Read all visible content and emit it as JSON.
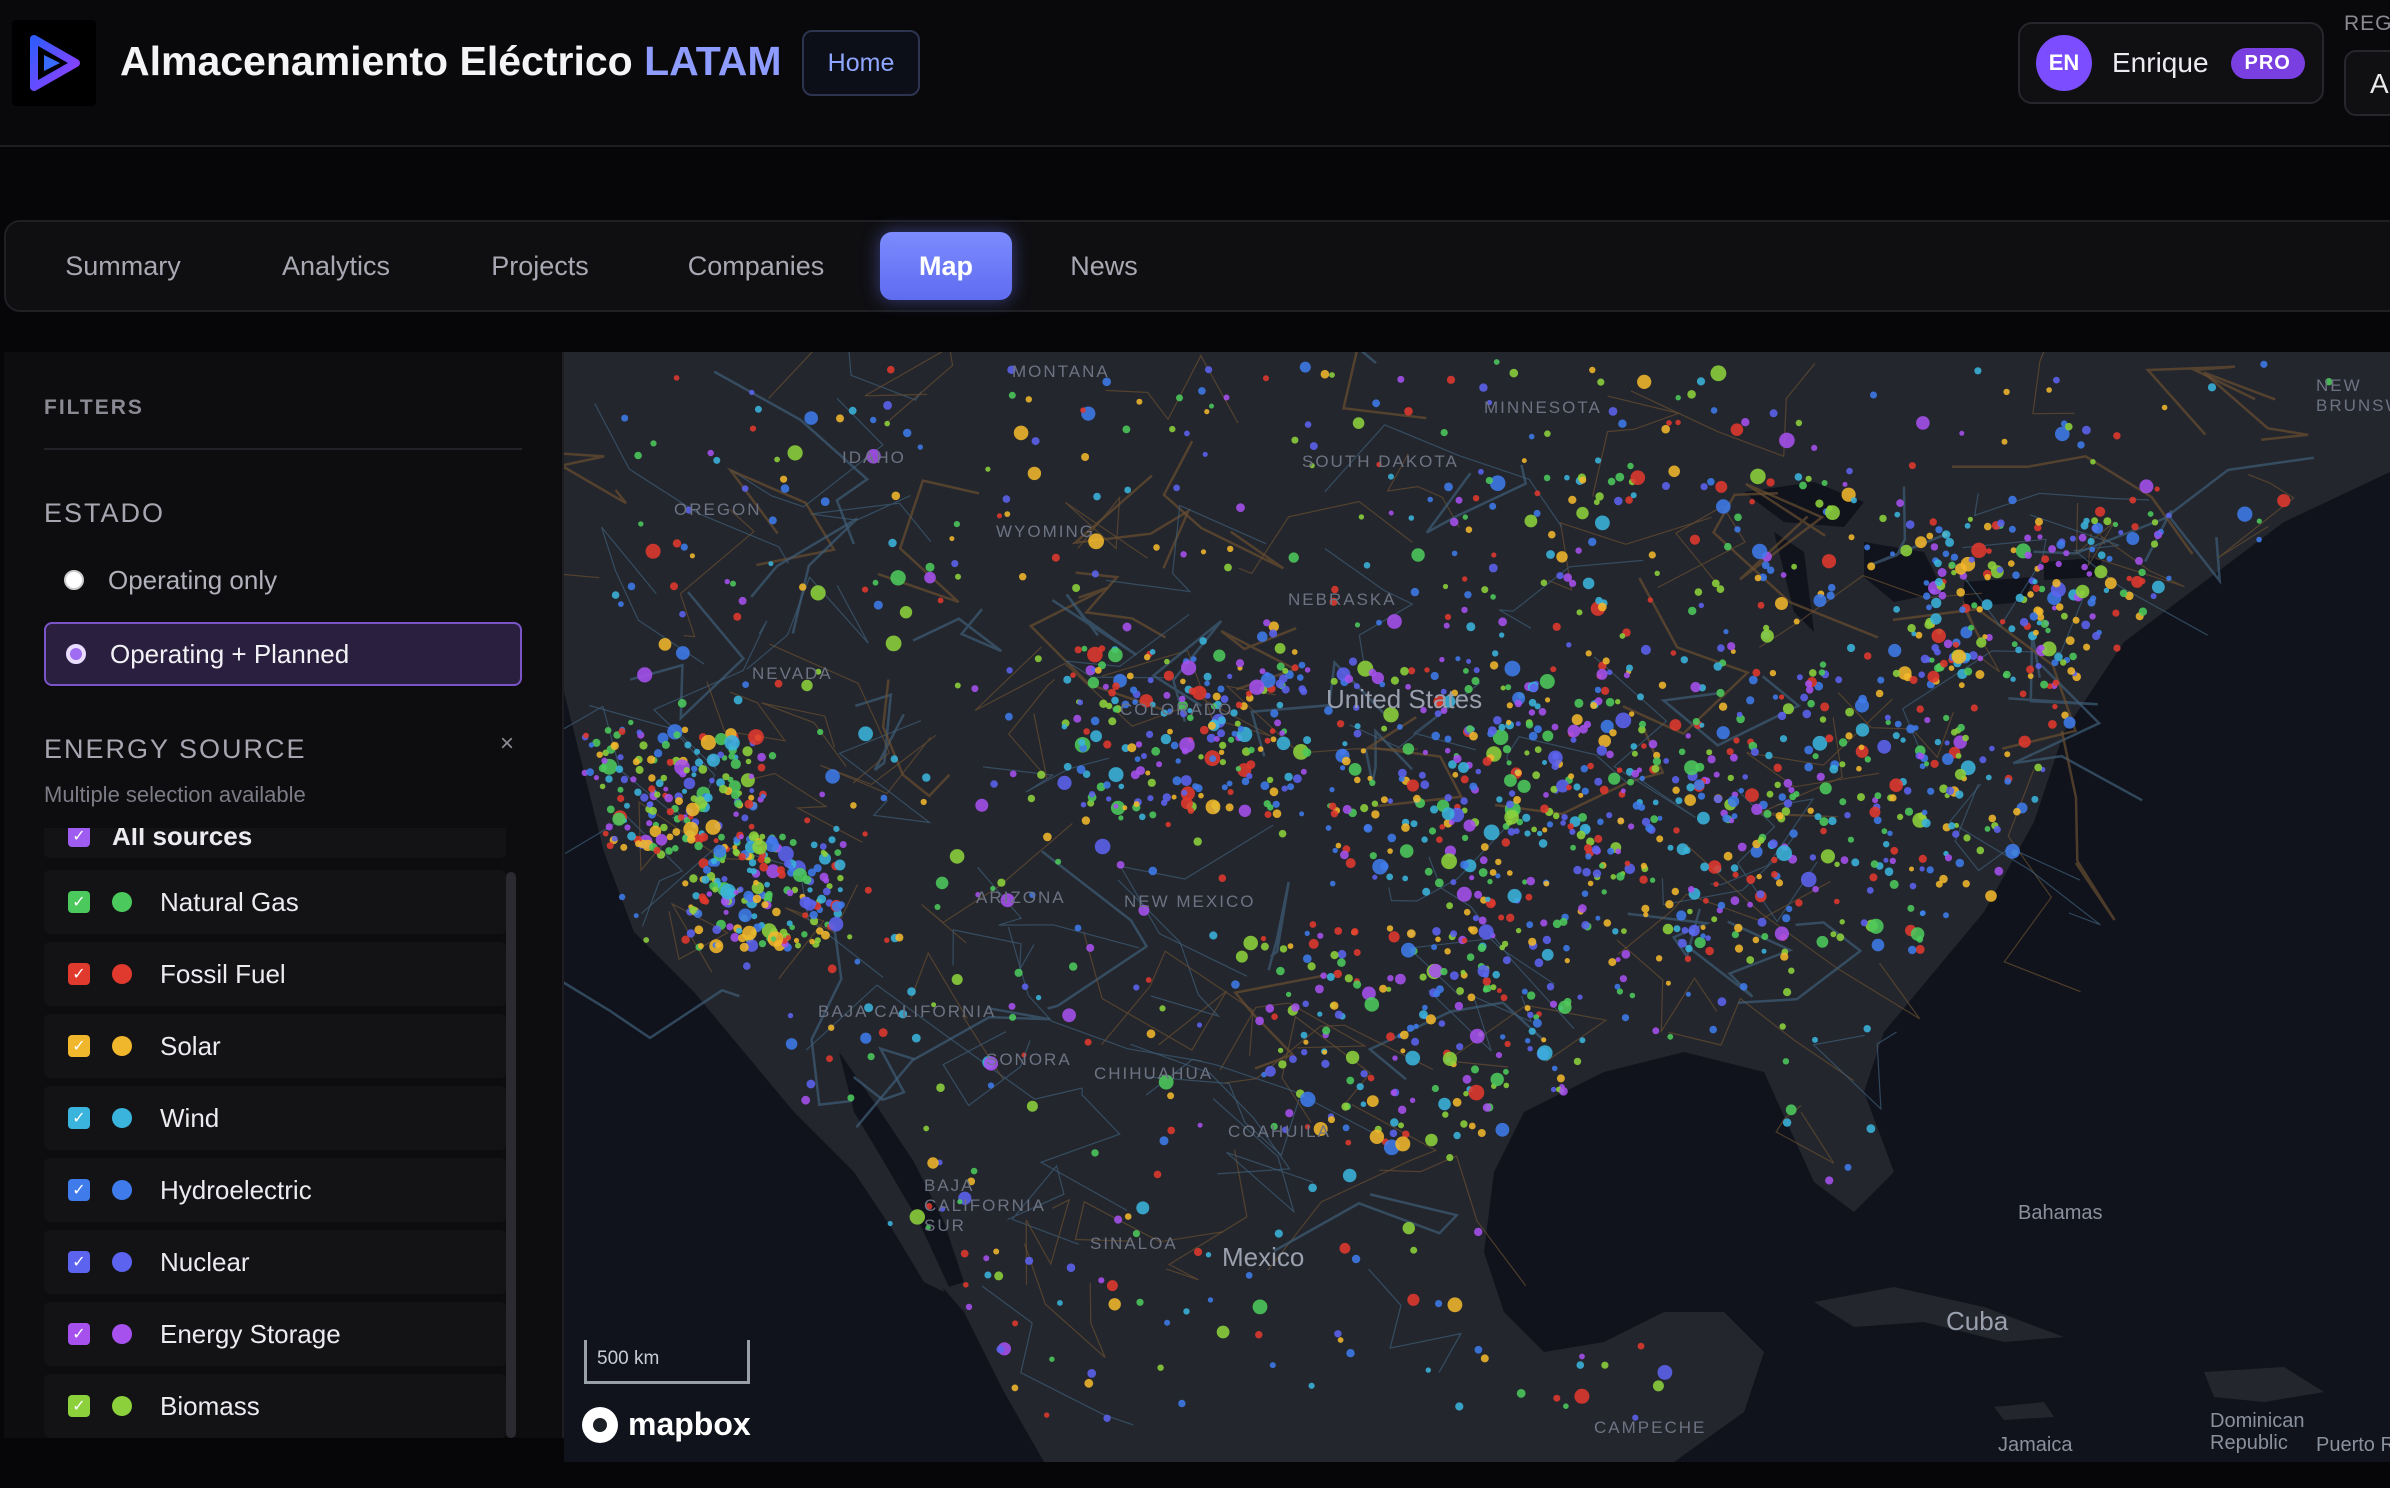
{
  "header": {
    "title_main": "Almacenamiento Eléctrico",
    "title_accent": "LATAM",
    "home_label": "Home",
    "user": {
      "initials": "EN",
      "name": "Enrique",
      "badge": "PRO"
    },
    "region_label": "REG",
    "region_value": "A"
  },
  "tabs": [
    {
      "label": "Summary"
    },
    {
      "label": "Analytics"
    },
    {
      "label": "Projects"
    },
    {
      "label": "Companies"
    },
    {
      "label": "Map",
      "active": true
    },
    {
      "label": "News"
    }
  ],
  "filters": {
    "title": "FILTERS",
    "estado": {
      "title": "ESTADO",
      "options": [
        {
          "label": "Operating only",
          "selected": false
        },
        {
          "label": "Operating + Planned",
          "selected": true
        }
      ]
    },
    "energy_source": {
      "title": "ENERGY SOURCE",
      "clear_symbol": "×",
      "hint": "Multiple selection available",
      "all_label": "All sources",
      "sources": [
        {
          "label": "Natural Gas",
          "color": "#4cc95c",
          "checked": true
        },
        {
          "label": "Fossil Fuel",
          "color": "#e0392e",
          "checked": true
        },
        {
          "label": "Solar",
          "color": "#f1b72c",
          "checked": true
        },
        {
          "label": "Wind",
          "color": "#3ab4dc",
          "checked": true
        },
        {
          "label": "Hydroelectric",
          "color": "#3f7bea",
          "checked": true
        },
        {
          "label": "Nuclear",
          "color": "#5c63ee",
          "checked": true
        },
        {
          "label": "Energy Storage",
          "color": "#a651ee",
          "checked": true
        },
        {
          "label": "Biomass",
          "color": "#8cd13b",
          "checked": true
        }
      ]
    }
  },
  "map": {
    "labels": {
      "montana": "MONTANA",
      "idaho": "IDAHO",
      "oregon": "OREGON",
      "wyoming": "WYOMING",
      "nevada": "NEVADA",
      "nebraska": "NEBRASKA",
      "south_dakota": "SOUTH DAKOTA",
      "minnesota": "MINNESOTA",
      "colorado": "COLORADO",
      "arizona": "ARIZONA",
      "new_mexico": "NEW MEXICO",
      "united_states": "United States",
      "baja_california": "BAJA CALIFORNIA",
      "sonora": "SONORA",
      "chihuahua": "CHIHUAHUA",
      "coahuila": "COAHUILA",
      "baja_california_sur": "BAJA CALIFORNIA SUR",
      "sinaloa": "SINALOA",
      "mexico": "Mexico",
      "bahamas": "Bahamas",
      "cuba": "Cuba",
      "jamaica": "Jamaica",
      "dominican_republic": "Dominican Republic",
      "puerto_rico": "Puerto R",
      "campeche": "CAMPECHE",
      "new_brunswick": "NEW BRUNSW"
    },
    "scale_label": "500 km",
    "attribution": "mapbox"
  }
}
